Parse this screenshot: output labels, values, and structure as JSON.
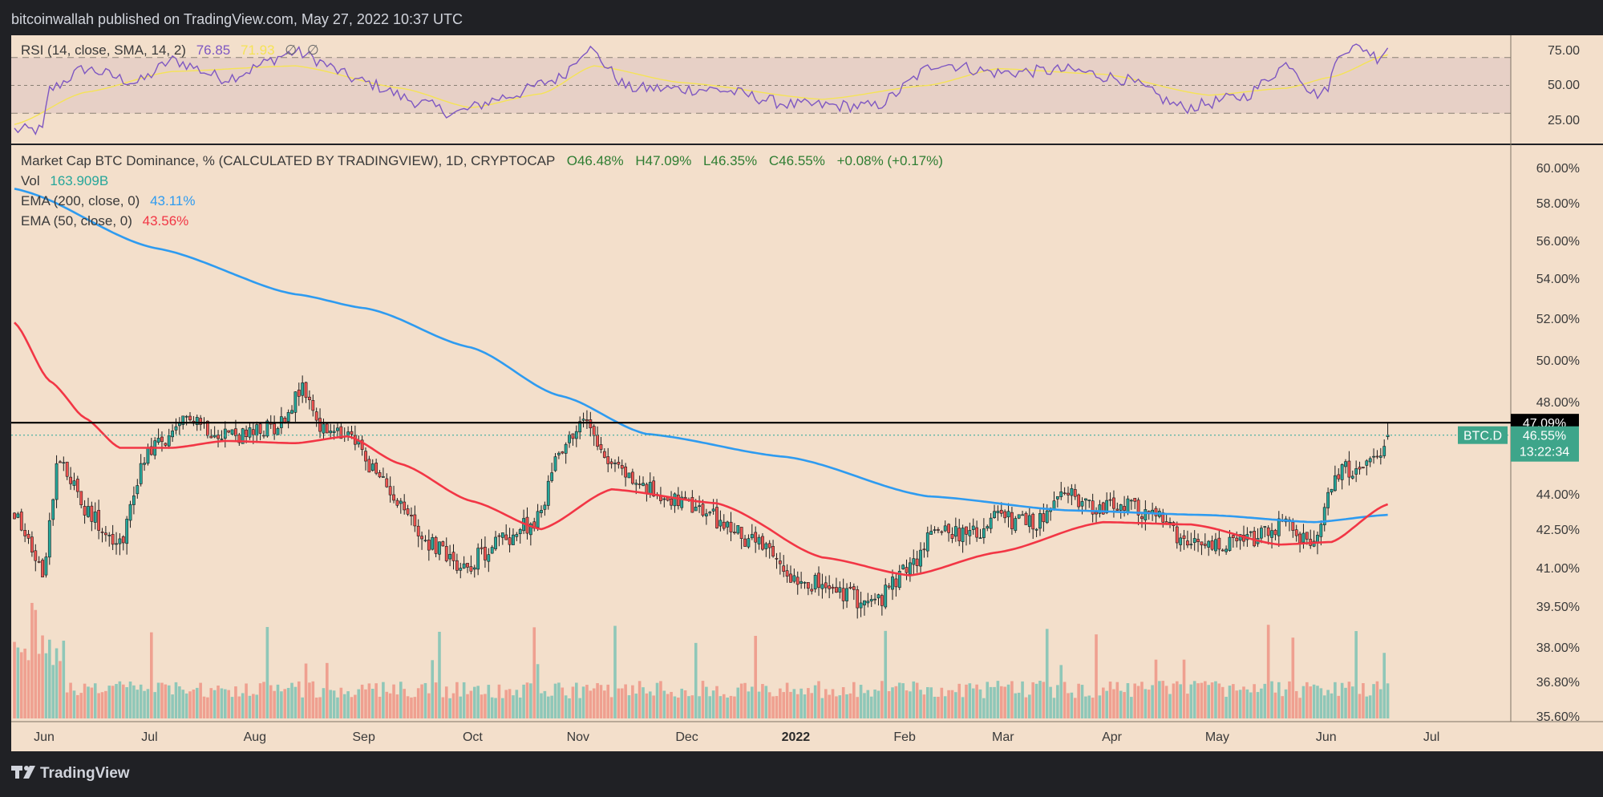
{
  "header": {
    "published_line": "bitcoinwallah published on TradingView.com, May 27, 2022 10:37 UTC"
  },
  "footer": {
    "brand": "TradingView",
    "logo_icon": "tradingview-logo-icon"
  },
  "rsi_pane": {
    "label": "RSI (14, close, SMA, 14, 2)",
    "rsi_value": "76.85",
    "sma_value": "71.93",
    "symbols": [
      "∅",
      "∅"
    ],
    "ticks": [
      "75.00",
      "50.00",
      "25.00"
    ],
    "rsi_color": "#7e57c2",
    "sma_color": "#f5e356"
  },
  "main_pane": {
    "symbol_line": "Market Cap BTC Dominance, % (CALCULATED BY TRADINGVIEW), 1D, CRYPTOCAP",
    "ohlc": {
      "open": "O46.48%",
      "high": "H47.09%",
      "low": "L46.35%",
      "close": "C46.55%",
      "change": "+0.08% (+0.17%)"
    },
    "vol_label": "Vol",
    "vol_value": "163.909B",
    "ema200_label": "EMA (200, close, 0)",
    "ema200_value": "43.11%",
    "ema50_label": "EMA (50, close, 0)",
    "ema50_value": "43.56%",
    "hline_value": "47.09%",
    "price_tag": {
      "symbol": "BTC.D",
      "price": "46.55%",
      "countdown": "13:22:34"
    },
    "colors": {
      "up": "#26a69a",
      "down": "#ef5350",
      "ema200": "#2e9bf0",
      "ema50": "#f23645",
      "background": "#f3dfcb"
    }
  },
  "chart_data": {
    "type": "candlestick",
    "title": "Market Cap BTC Dominance, %",
    "y_axis_ticks": [
      "60.00%",
      "58.00%",
      "56.00%",
      "54.00%",
      "52.00%",
      "50.00%",
      "48.00%",
      "44.00%",
      "42.50%",
      "41.00%",
      "39.50%",
      "38.00%",
      "36.80%",
      "35.60%"
    ],
    "x_axis_ticks": [
      "Jun",
      "Jul",
      "Aug",
      "Sep",
      "Oct",
      "Nov",
      "Dec",
      "2022",
      "Feb",
      "Mar",
      "Apr",
      "May",
      "Jun",
      "Jul"
    ],
    "ylim": [
      35.0,
      61.0
    ],
    "horizontal_line": 47.09,
    "last": {
      "open": 46.48,
      "high": 47.09,
      "low": 46.35,
      "close": 46.55
    },
    "price_keypoints": [
      {
        "day": 0,
        "value": 43.0
      },
      {
        "day": 8,
        "value": 40.9
      },
      {
        "day": 13,
        "value": 45.7
      },
      {
        "day": 20,
        "value": 43.3
      },
      {
        "day": 30,
        "value": 42.0
      },
      {
        "day": 38,
        "value": 46.0
      },
      {
        "day": 45,
        "value": 46.4
      },
      {
        "day": 50,
        "value": 47.5
      },
      {
        "day": 56,
        "value": 46.8
      },
      {
        "day": 66,
        "value": 46.5
      },
      {
        "day": 75,
        "value": 47.0
      },
      {
        "day": 82,
        "value": 48.6
      },
      {
        "day": 88,
        "value": 46.7
      },
      {
        "day": 96,
        "value": 46.4
      },
      {
        "day": 105,
        "value": 44.5
      },
      {
        "day": 118,
        "value": 42.0
      },
      {
        "day": 128,
        "value": 41.1
      },
      {
        "day": 140,
        "value": 42.2
      },
      {
        "day": 149,
        "value": 42.9
      },
      {
        "day": 155,
        "value": 46.0
      },
      {
        "day": 163,
        "value": 47.2
      },
      {
        "day": 170,
        "value": 45.3
      },
      {
        "day": 180,
        "value": 44.2
      },
      {
        "day": 195,
        "value": 43.3
      },
      {
        "day": 208,
        "value": 42.2
      },
      {
        "day": 222,
        "value": 40.7
      },
      {
        "day": 235,
        "value": 40.0
      },
      {
        "day": 245,
        "value": 39.6
      },
      {
        "day": 256,
        "value": 41.2
      },
      {
        "day": 263,
        "value": 42.7
      },
      {
        "day": 272,
        "value": 42.2
      },
      {
        "day": 280,
        "value": 43.0
      },
      {
        "day": 290,
        "value": 42.7
      },
      {
        "day": 300,
        "value": 44.0
      },
      {
        "day": 308,
        "value": 43.4
      },
      {
        "day": 315,
        "value": 43.5
      },
      {
        "day": 326,
        "value": 43.0
      },
      {
        "day": 333,
        "value": 41.8
      },
      {
        "day": 344,
        "value": 41.8
      },
      {
        "day": 355,
        "value": 42.2
      },
      {
        "day": 362,
        "value": 42.8
      },
      {
        "day": 368,
        "value": 41.9
      },
      {
        "day": 371,
        "value": 41.9
      },
      {
        "day": 374,
        "value": 44.2
      },
      {
        "day": 377,
        "value": 45.0
      },
      {
        "day": 384,
        "value": 45.2
      },
      {
        "day": 389,
        "value": 45.3
      },
      {
        "day": 390,
        "value": 46.1
      },
      {
        "day": 391,
        "value": 46.55
      }
    ],
    "ema200_keypoints": [
      {
        "day": 0,
        "value": 58.8
      },
      {
        "day": 40,
        "value": 55.6
      },
      {
        "day": 80,
        "value": 53.2
      },
      {
        "day": 100,
        "value": 52.5
      },
      {
        "day": 130,
        "value": 50.6
      },
      {
        "day": 155,
        "value": 48.3
      },
      {
        "day": 180,
        "value": 46.6
      },
      {
        "day": 220,
        "value": 45.6
      },
      {
        "day": 260,
        "value": 43.9
      },
      {
        "day": 300,
        "value": 43.3
      },
      {
        "day": 340,
        "value": 43.1
      },
      {
        "day": 370,
        "value": 42.8
      },
      {
        "day": 391,
        "value": 43.11
      }
    ],
    "ema50_keypoints": [
      {
        "day": 0,
        "value": 51.8
      },
      {
        "day": 10,
        "value": 49.0
      },
      {
        "day": 20,
        "value": 47.3
      },
      {
        "day": 30,
        "value": 46.0
      },
      {
        "day": 45,
        "value": 46.0
      },
      {
        "day": 60,
        "value": 46.3
      },
      {
        "day": 80,
        "value": 46.2
      },
      {
        "day": 95,
        "value": 46.5
      },
      {
        "day": 110,
        "value": 45.3
      },
      {
        "day": 130,
        "value": 43.7
      },
      {
        "day": 150,
        "value": 42.5
      },
      {
        "day": 170,
        "value": 44.2
      },
      {
        "day": 200,
        "value": 43.6
      },
      {
        "day": 230,
        "value": 41.4
      },
      {
        "day": 255,
        "value": 40.7
      },
      {
        "day": 280,
        "value": 41.6
      },
      {
        "day": 310,
        "value": 42.8
      },
      {
        "day": 335,
        "value": 42.7
      },
      {
        "day": 360,
        "value": 41.9
      },
      {
        "day": 375,
        "value": 42.0
      },
      {
        "day": 391,
        "value": 43.56
      }
    ],
    "rsi_keypoints": [
      {
        "day": 0,
        "value": 18
      },
      {
        "day": 8,
        "value": 18
      },
      {
        "day": 10,
        "value": 47
      },
      {
        "day": 20,
        "value": 62
      },
      {
        "day": 35,
        "value": 52
      },
      {
        "day": 45,
        "value": 68
      },
      {
        "day": 60,
        "value": 55
      },
      {
        "day": 80,
        "value": 74
      },
      {
        "day": 100,
        "value": 52
      },
      {
        "day": 115,
        "value": 38
      },
      {
        "day": 125,
        "value": 30
      },
      {
        "day": 140,
        "value": 42
      },
      {
        "day": 155,
        "value": 55
      },
      {
        "day": 163,
        "value": 77
      },
      {
        "day": 175,
        "value": 48
      },
      {
        "day": 200,
        "value": 47
      },
      {
        "day": 222,
        "value": 36
      },
      {
        "day": 245,
        "value": 35
      },
      {
        "day": 263,
        "value": 66
      },
      {
        "day": 280,
        "value": 59
      },
      {
        "day": 300,
        "value": 61
      },
      {
        "day": 315,
        "value": 55
      },
      {
        "day": 333,
        "value": 34
      },
      {
        "day": 350,
        "value": 42
      },
      {
        "day": 363,
        "value": 66
      },
      {
        "day": 370,
        "value": 44
      },
      {
        "day": 373,
        "value": 45
      },
      {
        "day": 378,
        "value": 76
      },
      {
        "day": 384,
        "value": 77
      },
      {
        "day": 388,
        "value": 70
      },
      {
        "day": 391,
        "value": 76.85
      }
    ],
    "rsi_sma_keypoints": [
      {
        "day": 0,
        "value": 22
      },
      {
        "day": 20,
        "value": 45
      },
      {
        "day": 45,
        "value": 60
      },
      {
        "day": 80,
        "value": 64
      },
      {
        "day": 110,
        "value": 48
      },
      {
        "day": 130,
        "value": 34
      },
      {
        "day": 150,
        "value": 44
      },
      {
        "day": 165,
        "value": 64
      },
      {
        "day": 190,
        "value": 52
      },
      {
        "day": 230,
        "value": 40
      },
      {
        "day": 260,
        "value": 50
      },
      {
        "day": 280,
        "value": 62
      },
      {
        "day": 310,
        "value": 58
      },
      {
        "day": 340,
        "value": 43
      },
      {
        "day": 362,
        "value": 48
      },
      {
        "day": 375,
        "value": 56
      },
      {
        "day": 391,
        "value": 71.93
      }
    ]
  }
}
